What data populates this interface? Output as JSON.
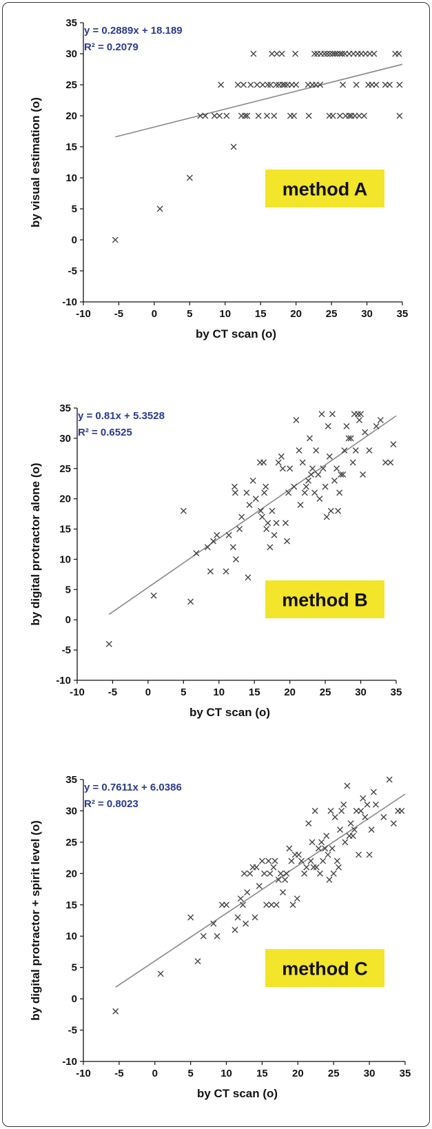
{
  "colors": {
    "equation_text": "#2b3a8f",
    "method_badge": "#f2e52a",
    "point": "#444444",
    "trendline": "#888888"
  },
  "chart_data": [
    {
      "type": "scatter",
      "method_label": "method A",
      "equation": "y = 0.2889x + 18.189",
      "r_squared": "R² = 0.2079",
      "xlabel": "by CT scan (o)",
      "ylabel": "by visual estimation (o)",
      "xlim": [
        -10,
        35
      ],
      "ylim": [
        -10,
        35
      ],
      "xticks": [
        "-10",
        "-5",
        "0",
        "5",
        "10",
        "15",
        "20",
        "25",
        "30",
        "35"
      ],
      "yticks": [
        "-10",
        "-5",
        "0",
        "5",
        "10",
        "15",
        "20",
        "25",
        "30",
        "35"
      ],
      "trendline": {
        "slope": 0.2889,
        "intercept": 18.189,
        "x_range": [
          -5.5,
          35
        ]
      },
      "points": [
        [
          -5.5,
          0
        ],
        [
          0.8,
          5
        ],
        [
          5,
          10
        ],
        [
          11.2,
          15
        ],
        [
          6.5,
          20
        ],
        [
          7.2,
          20
        ],
        [
          8.5,
          20
        ],
        [
          9.2,
          20
        ],
        [
          10.2,
          20
        ],
        [
          12.3,
          20
        ],
        [
          12.8,
          20
        ],
        [
          13.1,
          20
        ],
        [
          14.7,
          20
        ],
        [
          15.9,
          20
        ],
        [
          16.9,
          20
        ],
        [
          19.2,
          20
        ],
        [
          19.7,
          20
        ],
        [
          21.8,
          20
        ],
        [
          24.7,
          20
        ],
        [
          25.2,
          20
        ],
        [
          26.2,
          20
        ],
        [
          27.0,
          20
        ],
        [
          27.5,
          20
        ],
        [
          27.8,
          20
        ],
        [
          28.3,
          20
        ],
        [
          28.9,
          20
        ],
        [
          29.6,
          20
        ],
        [
          34.6,
          20
        ],
        [
          9.4,
          25
        ],
        [
          11.8,
          25
        ],
        [
          12.6,
          25
        ],
        [
          13.6,
          25
        ],
        [
          14.5,
          25
        ],
        [
          15.3,
          25
        ],
        [
          16.0,
          25
        ],
        [
          16.4,
          25
        ],
        [
          17.2,
          25
        ],
        [
          17.6,
          25
        ],
        [
          18.1,
          25
        ],
        [
          18.4,
          25
        ],
        [
          18.8,
          25
        ],
        [
          19.4,
          25
        ],
        [
          20.0,
          25
        ],
        [
          21.7,
          25
        ],
        [
          22.3,
          25
        ],
        [
          22.8,
          25
        ],
        [
          23.4,
          25
        ],
        [
          26.6,
          25
        ],
        [
          28.5,
          25
        ],
        [
          30.2,
          25
        ],
        [
          30.7,
          25
        ],
        [
          31.3,
          25
        ],
        [
          32.6,
          25
        ],
        [
          33.2,
          25
        ],
        [
          34.6,
          25
        ],
        [
          14.0,
          30
        ],
        [
          16.6,
          30
        ],
        [
          17.3,
          30
        ],
        [
          18.0,
          30
        ],
        [
          19.9,
          30
        ],
        [
          22.6,
          30
        ],
        [
          23.0,
          30
        ],
        [
          23.5,
          30
        ],
        [
          24.0,
          30
        ],
        [
          24.4,
          30
        ],
        [
          24.8,
          30
        ],
        [
          25.2,
          30
        ],
        [
          25.5,
          30
        ],
        [
          25.8,
          30
        ],
        [
          26.2,
          30
        ],
        [
          26.5,
          30
        ],
        [
          26.9,
          30
        ],
        [
          27.5,
          30
        ],
        [
          28.1,
          30
        ],
        [
          28.7,
          30
        ],
        [
          29.2,
          30
        ],
        [
          29.8,
          30
        ],
        [
          30.4,
          30
        ],
        [
          31.0,
          30
        ],
        [
          34.0,
          30
        ],
        [
          34.5,
          30
        ]
      ]
    },
    {
      "type": "scatter",
      "method_label": "method B",
      "equation": "y = 0.81x + 5.3528",
      "r_squared": "R² = 0.6525",
      "xlabel": "by CT scan (o)",
      "ylabel": "by digital protractor alone (o)",
      "xlim": [
        -10,
        35
      ],
      "ylim": [
        -10,
        35
      ],
      "xticks": [
        "-10",
        "-5",
        "0",
        "5",
        "10",
        "15",
        "20",
        "25",
        "30",
        "35"
      ],
      "yticks": [
        "-10",
        "-5",
        "0",
        "5",
        "10",
        "15",
        "20",
        "25",
        "30",
        "35"
      ],
      "trendline": {
        "slope": 0.81,
        "intercept": 5.3528,
        "x_range": [
          -5.5,
          35
        ]
      },
      "points": [
        [
          -5.5,
          -4
        ],
        [
          0.8,
          4
        ],
        [
          6.0,
          3
        ],
        [
          5.0,
          18
        ],
        [
          6.8,
          11
        ],
        [
          8.4,
          12
        ],
        [
          8.8,
          8
        ],
        [
          9.2,
          13
        ],
        [
          9.7,
          14
        ],
        [
          11.0,
          8
        ],
        [
          11.4,
          14
        ],
        [
          12.0,
          12
        ],
        [
          12.2,
          22
        ],
        [
          12.3,
          21
        ],
        [
          12.4,
          10
        ],
        [
          12.9,
          15
        ],
        [
          13.2,
          17
        ],
        [
          13.9,
          21
        ],
        [
          14.1,
          7
        ],
        [
          14.3,
          19
        ],
        [
          14.8,
          23
        ],
        [
          15.2,
          20
        ],
        [
          15.8,
          26
        ],
        [
          15.9,
          18
        ],
        [
          16.1,
          17
        ],
        [
          16.3,
          26
        ],
        [
          16.4,
          21
        ],
        [
          16.6,
          22
        ],
        [
          16.7,
          15
        ],
        [
          16.9,
          16
        ],
        [
          17.2,
          12
        ],
        [
          17.5,
          18
        ],
        [
          17.8,
          14
        ],
        [
          18.1,
          16
        ],
        [
          18.4,
          26
        ],
        [
          18.8,
          27
        ],
        [
          19.0,
          25
        ],
        [
          19.4,
          16
        ],
        [
          19.6,
          13
        ],
        [
          19.8,
          21
        ],
        [
          20.0,
          25
        ],
        [
          20.6,
          22
        ],
        [
          20.9,
          33
        ],
        [
          21.3,
          28
        ],
        [
          21.5,
          19
        ],
        [
          21.8,
          26
        ],
        [
          22.1,
          21
        ],
        [
          22.3,
          22
        ],
        [
          22.6,
          23
        ],
        [
          22.8,
          30
        ],
        [
          23.0,
          24
        ],
        [
          23.2,
          25
        ],
        [
          23.5,
          21
        ],
        [
          23.7,
          28
        ],
        [
          24.0,
          24
        ],
        [
          24.2,
          20
        ],
        [
          24.5,
          34
        ],
        [
          24.7,
          25
        ],
        [
          25.0,
          22
        ],
        [
          25.2,
          17
        ],
        [
          25.4,
          32
        ],
        [
          25.6,
          27
        ],
        [
          25.8,
          18
        ],
        [
          26.0,
          34
        ],
        [
          26.3,
          23
        ],
        [
          26.6,
          25
        ],
        [
          26.8,
          18
        ],
        [
          27.0,
          21
        ],
        [
          27.2,
          24
        ],
        [
          27.5,
          24
        ],
        [
          27.7,
          28
        ],
        [
          28.0,
          32
        ],
        [
          28.3,
          30
        ],
        [
          28.6,
          30
        ],
        [
          28.9,
          26
        ],
        [
          29.1,
          34
        ],
        [
          29.3,
          28
        ],
        [
          29.6,
          34
        ],
        [
          29.8,
          33
        ],
        [
          30.0,
          34
        ],
        [
          30.3,
          24
        ],
        [
          30.6,
          31
        ],
        [
          31.2,
          28
        ],
        [
          32.2,
          32
        ],
        [
          32.8,
          33
        ],
        [
          33.5,
          26
        ],
        [
          34.2,
          26
        ],
        [
          34.6,
          29
        ]
      ]
    },
    {
      "type": "scatter",
      "method_label": "method C",
      "equation": "y = 0.7611x + 6.0386",
      "r_squared": "R² = 0.8023",
      "xlabel": "by CT scan (o)",
      "ylabel": "by digital protractor + spirit level (o)",
      "xlim": [
        -10,
        35
      ],
      "ylim": [
        -10,
        35
      ],
      "xticks": [
        "-10",
        "-5",
        "0",
        "5",
        "10",
        "15",
        "20",
        "25",
        "30",
        "35"
      ],
      "yticks": [
        "-10",
        "-5",
        "0",
        "5",
        "10",
        "15",
        "20",
        "25",
        "30",
        "35"
      ],
      "trendline": {
        "slope": 0.7611,
        "intercept": 6.0386,
        "x_range": [
          -5.5,
          35
        ]
      },
      "points": [
        [
          -5.5,
          -2
        ],
        [
          0.8,
          4
        ],
        [
          5.0,
          13
        ],
        [
          6.0,
          6
        ],
        [
          6.8,
          10
        ],
        [
          8.2,
          12
        ],
        [
          8.7,
          10
        ],
        [
          9.4,
          15
        ],
        [
          10.0,
          15
        ],
        [
          11.2,
          11
        ],
        [
          11.6,
          13
        ],
        [
          12.0,
          16
        ],
        [
          12.3,
          15
        ],
        [
          12.5,
          20
        ],
        [
          12.7,
          12
        ],
        [
          12.9,
          17
        ],
        [
          13.3,
          20
        ],
        [
          13.7,
          21
        ],
        [
          14.0,
          13
        ],
        [
          14.2,
          21
        ],
        [
          14.6,
          18
        ],
        [
          15.0,
          22
        ],
        [
          15.3,
          20
        ],
        [
          15.6,
          15
        ],
        [
          15.9,
          22
        ],
        [
          16.1,
          20
        ],
        [
          16.3,
          15
        ],
        [
          16.6,
          21
        ],
        [
          16.8,
          22
        ],
        [
          17.0,
          15
        ],
        [
          17.3,
          19
        ],
        [
          17.6,
          20
        ],
        [
          17.9,
          17
        ],
        [
          18.2,
          19
        ],
        [
          18.4,
          20
        ],
        [
          18.8,
          24
        ],
        [
          19.1,
          22
        ],
        [
          19.3,
          15
        ],
        [
          19.6,
          23
        ],
        [
          19.9,
          16
        ],
        [
          20.1,
          23
        ],
        [
          20.5,
          22
        ],
        [
          20.9,
          20
        ],
        [
          21.2,
          21
        ],
        [
          21.5,
          28
        ],
        [
          21.8,
          22
        ],
        [
          22.0,
          25
        ],
        [
          22.2,
          21
        ],
        [
          22.4,
          30
        ],
        [
          22.6,
          21
        ],
        [
          22.9,
          24
        ],
        [
          23.1,
          20
        ],
        [
          23.3,
          25
        ],
        [
          23.5,
          22
        ],
        [
          23.8,
          24
        ],
        [
          24.0,
          26
        ],
        [
          24.2,
          23
        ],
        [
          24.4,
          19
        ],
        [
          24.6,
          30
        ],
        [
          24.8,
          24
        ],
        [
          25.0,
          20
        ],
        [
          25.2,
          29
        ],
        [
          25.5,
          22
        ],
        [
          25.7,
          21
        ],
        [
          25.9,
          27
        ],
        [
          26.1,
          30
        ],
        [
          26.4,
          31
        ],
        [
          26.6,
          25
        ],
        [
          26.9,
          34
        ],
        [
          27.2,
          26
        ],
        [
          27.4,
          28
        ],
        [
          27.7,
          26
        ],
        [
          27.9,
          27
        ],
        [
          28.2,
          30
        ],
        [
          28.5,
          23
        ],
        [
          28.8,
          30
        ],
        [
          29.1,
          32
        ],
        [
          29.4,
          29
        ],
        [
          29.7,
          31
        ],
        [
          30.0,
          23
        ],
        [
          30.3,
          27
        ],
        [
          30.6,
          33
        ],
        [
          30.9,
          31
        ],
        [
          32.0,
          29
        ],
        [
          32.8,
          35
        ],
        [
          33.4,
          28
        ],
        [
          34.0,
          30
        ],
        [
          34.5,
          30
        ]
      ]
    }
  ]
}
